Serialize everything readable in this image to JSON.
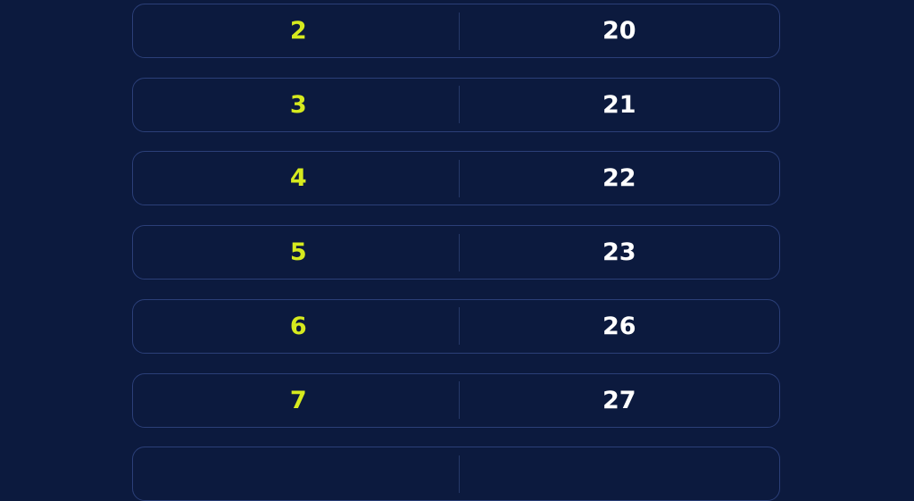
{
  "rows": [
    {
      "left": "2",
      "right": "20"
    },
    {
      "left": "3",
      "right": "21"
    },
    {
      "left": "4",
      "right": "22"
    },
    {
      "left": "5",
      "right": "23"
    },
    {
      "left": "6",
      "right": "26"
    },
    {
      "left": "7",
      "right": "27"
    },
    {
      "left": "",
      "right": ""
    }
  ],
  "colors": {
    "background": "#0c1a3e",
    "left_text": "#d6ea1e",
    "right_text": "#ffffff",
    "border": "#2b3f78"
  }
}
